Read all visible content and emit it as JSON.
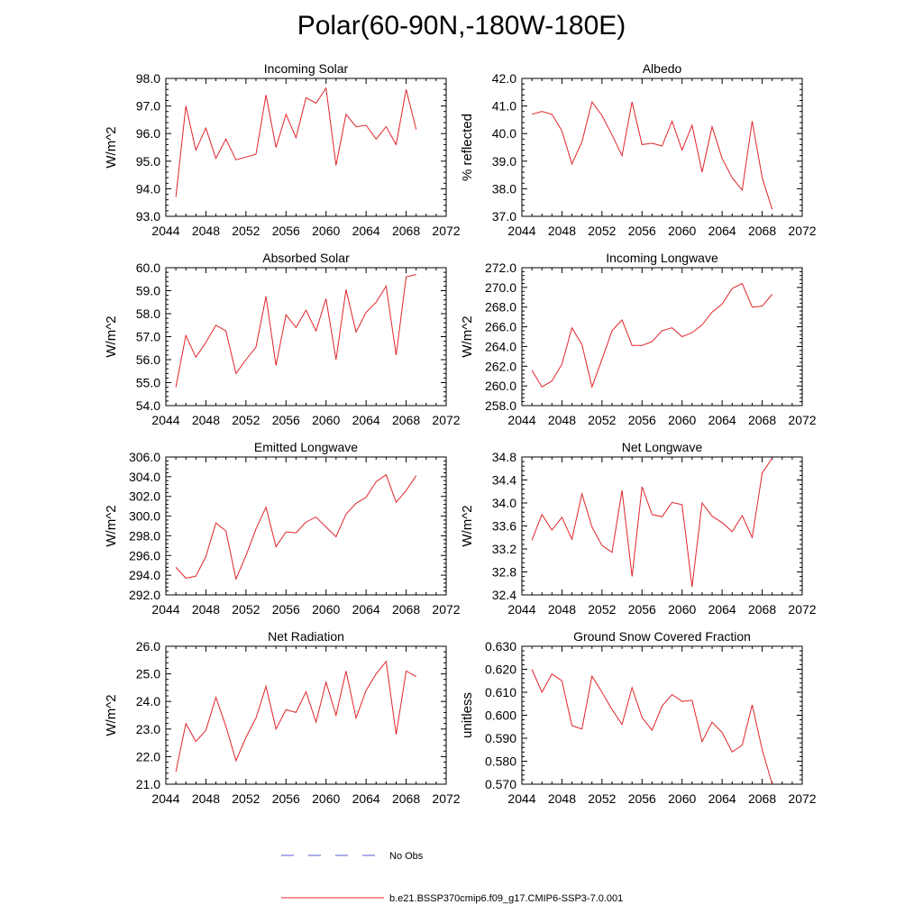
{
  "title": "Polar(60-90N,-180W-180E)",
  "legend": {
    "obs_label": "No Obs",
    "obs_color": "#5a5ad6",
    "model_label": "b.e21.BSSP370cmip6.f09_g17.CMIP6-SSP3-7.0.001",
    "model_color": "#e0242a"
  },
  "chart_data": [
    {
      "type": "line",
      "title": "Incoming Solar",
      "ylabel": "W/m^2",
      "xlim": [
        2044,
        2072
      ],
      "xticks": [
        "2044",
        "2048",
        "2052",
        "2056",
        "2060",
        "2064",
        "2068",
        "2072"
      ],
      "ylim": [
        93.0,
        98.0
      ],
      "yticks": [
        "93.0",
        "94.0",
        "95.0",
        "96.0",
        "97.0",
        "98.0"
      ],
      "x": [
        2045,
        2046,
        2047,
        2048,
        2049,
        2050,
        2051,
        2052,
        2053,
        2054,
        2055,
        2056,
        2057,
        2058,
        2059,
        2060,
        2061,
        2062,
        2063,
        2064,
        2065,
        2066,
        2067,
        2068,
        2069
      ],
      "series": [
        {
          "values": [
            93.7,
            97.0,
            95.4,
            96.2,
            95.1,
            95.8,
            95.05,
            95.15,
            95.25,
            97.4,
            95.5,
            96.7,
            95.85,
            97.3,
            97.1,
            97.65,
            94.85,
            96.7,
            96.25,
            96.3,
            95.8,
            96.25,
            95.6,
            97.6,
            96.15
          ]
        }
      ]
    },
    {
      "type": "line",
      "title": "Albedo",
      "ylabel": "% reflected",
      "xlim": [
        2044,
        2072
      ],
      "xticks": [
        "2044",
        "2048",
        "2052",
        "2056",
        "2060",
        "2064",
        "2068",
        "2072"
      ],
      "ylim": [
        37.0,
        42.0
      ],
      "yticks": [
        "37.0",
        "38.0",
        "39.0",
        "40.0",
        "41.0",
        "42.0"
      ],
      "x": [
        2045,
        2046,
        2047,
        2048,
        2049,
        2050,
        2051,
        2052,
        2053,
        2054,
        2055,
        2056,
        2057,
        2058,
        2059,
        2060,
        2061,
        2062,
        2063,
        2064,
        2065,
        2066,
        2067,
        2068,
        2069
      ],
      "series": [
        {
          "values": [
            40.7,
            40.8,
            40.7,
            40.1,
            38.9,
            39.7,
            41.15,
            40.65,
            39.95,
            39.2,
            41.15,
            39.6,
            39.65,
            39.55,
            40.45,
            39.4,
            40.3,
            38.6,
            40.25,
            39.1,
            38.4,
            37.95,
            40.45,
            38.4,
            37.25
          ]
        }
      ]
    },
    {
      "type": "line",
      "title": "Absorbed Solar",
      "ylabel": "W/m^2",
      "xlim": [
        2044,
        2072
      ],
      "xticks": [
        "2044",
        "2048",
        "2052",
        "2056",
        "2060",
        "2064",
        "2068",
        "2072"
      ],
      "ylim": [
        54.0,
        60.0
      ],
      "yticks": [
        "54.0",
        "55.0",
        "56.0",
        "57.0",
        "58.0",
        "59.0",
        "60.0"
      ],
      "x": [
        2045,
        2046,
        2047,
        2048,
        2049,
        2050,
        2051,
        2052,
        2053,
        2054,
        2055,
        2056,
        2057,
        2058,
        2059,
        2060,
        2061,
        2062,
        2063,
        2064,
        2065,
        2066,
        2067,
        2068,
        2069
      ],
      "series": [
        {
          "values": [
            54.8,
            57.05,
            56.1,
            56.75,
            57.5,
            57.25,
            55.4,
            56.0,
            56.55,
            58.75,
            55.75,
            57.95,
            57.4,
            58.15,
            57.25,
            58.65,
            56.0,
            59.05,
            57.2,
            58.05,
            58.5,
            59.2,
            56.2,
            59.6,
            59.7
          ]
        }
      ]
    },
    {
      "type": "line",
      "title": "Incoming Longwave",
      "ylabel": "W/m^2",
      "xlim": [
        2044,
        2072
      ],
      "xticks": [
        "2044",
        "2048",
        "2052",
        "2056",
        "2060",
        "2064",
        "2068",
        "2072"
      ],
      "ylim": [
        258.0,
        272.0
      ],
      "yticks": [
        "258.0",
        "260.0",
        "262.0",
        "264.0",
        "266.0",
        "268.0",
        "270.0",
        "272.0"
      ],
      "x": [
        2045,
        2046,
        2047,
        2048,
        2049,
        2050,
        2051,
        2052,
        2053,
        2054,
        2055,
        2056,
        2057,
        2058,
        2059,
        2060,
        2061,
        2062,
        2063,
        2064,
        2065,
        2066,
        2067,
        2068,
        2069
      ],
      "series": [
        {
          "values": [
            261.6,
            259.9,
            260.5,
            262.2,
            265.9,
            264.2,
            259.9,
            262.7,
            265.6,
            266.7,
            264.1,
            264.1,
            264.5,
            265.6,
            265.9,
            265.0,
            265.4,
            266.2,
            267.5,
            268.3,
            269.9,
            270.4,
            268.0,
            268.1,
            269.3
          ]
        }
      ]
    },
    {
      "type": "line",
      "title": "Emitted Longwave",
      "ylabel": "W/m^2",
      "xlim": [
        2044,
        2072
      ],
      "xticks": [
        "2044",
        "2048",
        "2052",
        "2056",
        "2060",
        "2064",
        "2068",
        "2072"
      ],
      "ylim": [
        292.0,
        306.0
      ],
      "yticks": [
        "292.0",
        "294.0",
        "296.0",
        "298.0",
        "300.0",
        "302.0",
        "304.0",
        "306.0"
      ],
      "x": [
        2045,
        2046,
        2047,
        2048,
        2049,
        2050,
        2051,
        2052,
        2053,
        2054,
        2055,
        2056,
        2057,
        2058,
        2059,
        2060,
        2061,
        2062,
        2063,
        2064,
        2065,
        2066,
        2067,
        2068,
        2069
      ],
      "series": [
        {
          "values": [
            294.8,
            293.7,
            293.9,
            295.9,
            299.3,
            298.5,
            293.6,
            296.0,
            298.7,
            300.9,
            296.9,
            298.4,
            298.3,
            299.4,
            299.9,
            298.9,
            297.9,
            300.2,
            301.3,
            301.9,
            303.5,
            304.2,
            301.4,
            302.6,
            304.1
          ]
        }
      ]
    },
    {
      "type": "line",
      "title": "Net Longwave",
      "ylabel": "W/m^2",
      "xlim": [
        2044,
        2072
      ],
      "xticks": [
        "2044",
        "2048",
        "2052",
        "2056",
        "2060",
        "2064",
        "2068",
        "2072"
      ],
      "ylim": [
        32.4,
        34.8
      ],
      "yticks": [
        "32.4",
        "32.8",
        "33.2",
        "33.6",
        "34.0",
        "34.4",
        "34.8"
      ],
      "x": [
        2045,
        2046,
        2047,
        2048,
        2049,
        2050,
        2051,
        2052,
        2053,
        2054,
        2055,
        2056,
        2057,
        2058,
        2059,
        2060,
        2061,
        2062,
        2063,
        2064,
        2065,
        2066,
        2067,
        2068,
        2069
      ],
      "series": [
        {
          "values": [
            33.35,
            33.8,
            33.53,
            33.75,
            33.37,
            34.16,
            33.58,
            33.26,
            33.14,
            34.22,
            32.72,
            34.28,
            33.8,
            33.76,
            34.01,
            33.97,
            32.54,
            34.0,
            33.77,
            33.66,
            33.5,
            33.78,
            33.4,
            34.52,
            34.78
          ]
        }
      ]
    },
    {
      "type": "line",
      "title": "Net Radiation",
      "ylabel": "W/m^2",
      "xlim": [
        2044,
        2072
      ],
      "xticks": [
        "2044",
        "2048",
        "2052",
        "2056",
        "2060",
        "2064",
        "2068",
        "2072"
      ],
      "ylim": [
        21.0,
        26.0
      ],
      "yticks": [
        "21.0",
        "22.0",
        "23.0",
        "24.0",
        "25.0",
        "26.0"
      ],
      "x": [
        2045,
        2046,
        2047,
        2048,
        2049,
        2050,
        2051,
        2052,
        2053,
        2054,
        2055,
        2056,
        2057,
        2058,
        2059,
        2060,
        2061,
        2062,
        2063,
        2064,
        2065,
        2066,
        2067,
        2068,
        2069
      ],
      "series": [
        {
          "values": [
            21.45,
            23.2,
            22.55,
            22.95,
            24.15,
            23.1,
            21.85,
            22.7,
            23.4,
            24.55,
            23.0,
            23.7,
            23.6,
            24.35,
            23.25,
            24.7,
            23.5,
            25.1,
            23.4,
            24.4,
            25.0,
            25.45,
            22.8,
            25.1,
            24.9
          ]
        }
      ]
    },
    {
      "type": "line",
      "title": "Ground Snow Covered Fraction",
      "ylabel": "unitless",
      "xlim": [
        2044,
        2072
      ],
      "xticks": [
        "2044",
        "2048",
        "2052",
        "2056",
        "2060",
        "2064",
        "2068",
        "2072"
      ],
      "ylim": [
        0.57,
        0.63
      ],
      "yticks": [
        "0.570",
        "0.580",
        "0.590",
        "0.600",
        "0.610",
        "0.620",
        "0.630"
      ],
      "x": [
        2045,
        2046,
        2047,
        2048,
        2049,
        2050,
        2051,
        2052,
        2053,
        2054,
        2055,
        2056,
        2057,
        2058,
        2059,
        2060,
        2061,
        2062,
        2063,
        2064,
        2065,
        2066,
        2067,
        2068,
        2069
      ],
      "series": [
        {
          "values": [
            0.62,
            0.61,
            0.618,
            0.615,
            0.5955,
            0.594,
            0.617,
            0.61,
            0.6025,
            0.596,
            0.612,
            0.599,
            0.5935,
            0.604,
            0.609,
            0.606,
            0.6065,
            0.5885,
            0.597,
            0.5925,
            0.584,
            0.587,
            0.6045,
            0.585,
            0.57
          ]
        }
      ]
    }
  ]
}
